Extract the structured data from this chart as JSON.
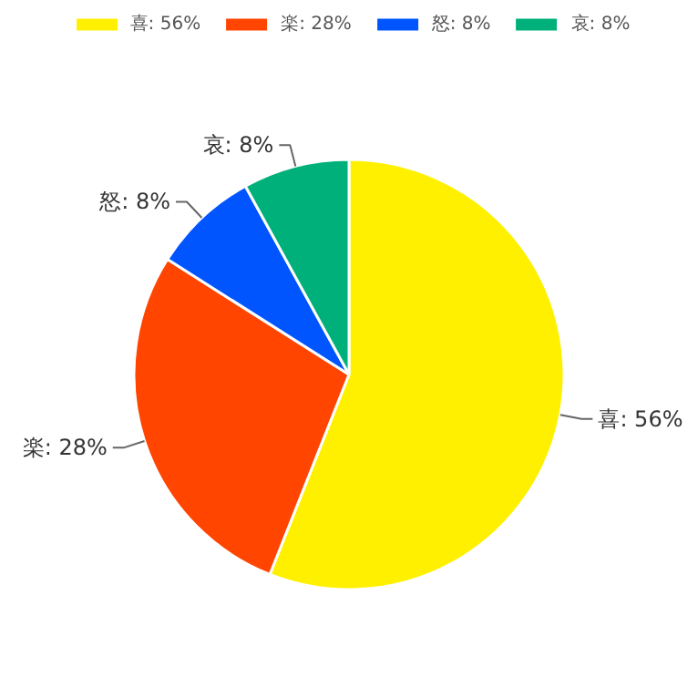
{
  "chart_data": {
    "type": "pie",
    "categories": [
      "喜: 56%",
      "楽: 28%",
      "怒: 8%",
      "哀: 8%"
    ],
    "values": [
      56,
      28,
      8,
      8
    ],
    "colors": [
      "#fff000",
      "#ff4500",
      "#0055ff",
      "#00b07a"
    ],
    "legend": "top"
  }
}
